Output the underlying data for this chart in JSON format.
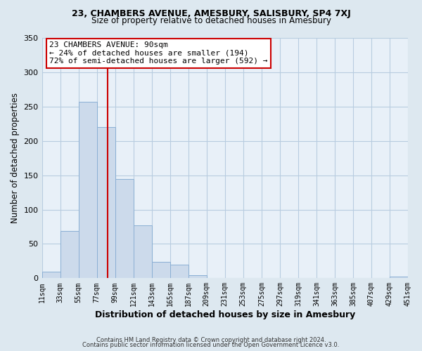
{
  "title1": "23, CHAMBERS AVENUE, AMESBURY, SALISBURY, SP4 7XJ",
  "title2": "Size of property relative to detached houses in Amesbury",
  "xlabel": "Distribution of detached houses by size in Amesbury",
  "ylabel": "Number of detached properties",
  "bin_edges": [
    11,
    33,
    55,
    77,
    99,
    121,
    143,
    165,
    187,
    209,
    231,
    253,
    275,
    297,
    319,
    341,
    363,
    385,
    407,
    429,
    451
  ],
  "bar_heights": [
    10,
    69,
    257,
    220,
    144,
    77,
    24,
    20,
    4,
    0,
    0,
    0,
    0,
    0,
    0,
    0,
    0,
    0,
    0,
    2
  ],
  "bar_color": "#ccdaeb",
  "bar_edge_color": "#8aafd4",
  "property_value": 90,
  "annotation_title": "23 CHAMBERS AVENUE: 90sqm",
  "annotation_line1": "← 24% of detached houses are smaller (194)",
  "annotation_line2": "72% of semi-detached houses are larger (592) →",
  "annotation_box_color": "#ffffff",
  "annotation_box_edge": "#cc0000",
  "vline_color": "#cc0000",
  "ylim": [
    0,
    350
  ],
  "yticks": [
    0,
    50,
    100,
    150,
    200,
    250,
    300,
    350
  ],
  "footer1": "Contains HM Land Registry data © Crown copyright and database right 2024.",
  "footer2": "Contains public sector information licensed under the Open Government Licence v3.0.",
  "bg_color": "#dde8f0",
  "plot_bg_color": "#e8f0f8",
  "grid_color": "#b8cce0"
}
